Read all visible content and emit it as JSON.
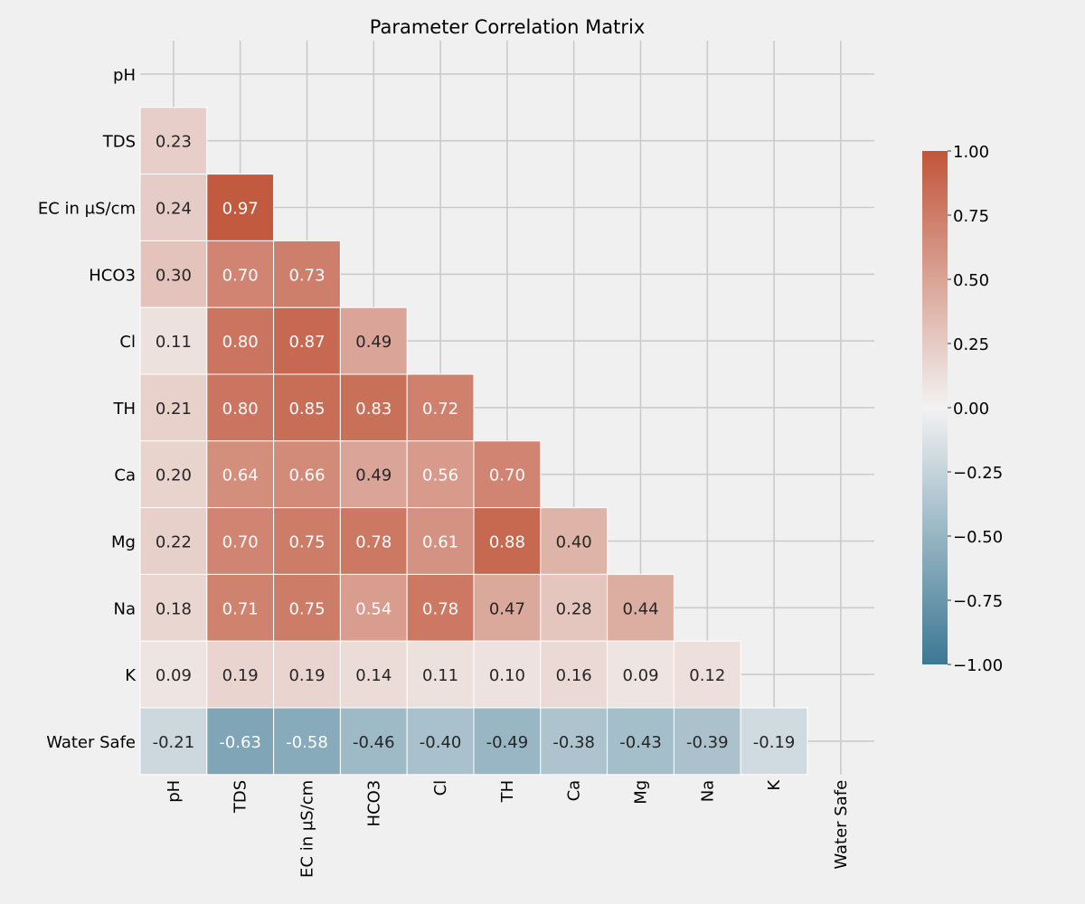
{
  "chart_data": {
    "type": "heatmap",
    "title": "Parameter Correlation Matrix",
    "xlabel": "",
    "ylabel": "",
    "labels": [
      "pH",
      "TDS",
      "EC in μS/cm",
      "HCO3",
      "Cl",
      "TH",
      "Ca",
      "Mg",
      "Na",
      "K",
      "Water Safe"
    ],
    "mask": "upper triangle incl. diagonal",
    "value_format": "2 decimals",
    "matrix": [
      [
        null,
        null,
        null,
        null,
        null,
        null,
        null,
        null,
        null,
        null,
        null
      ],
      [
        0.23,
        null,
        null,
        null,
        null,
        null,
        null,
        null,
        null,
        null,
        null
      ],
      [
        0.24,
        0.97,
        null,
        null,
        null,
        null,
        null,
        null,
        null,
        null,
        null
      ],
      [
        0.3,
        0.7,
        0.73,
        null,
        null,
        null,
        null,
        null,
        null,
        null,
        null
      ],
      [
        0.11,
        0.8,
        0.87,
        0.49,
        null,
        null,
        null,
        null,
        null,
        null,
        null
      ],
      [
        0.21,
        0.8,
        0.85,
        0.83,
        0.72,
        null,
        null,
        null,
        null,
        null,
        null
      ],
      [
        0.2,
        0.64,
        0.66,
        0.49,
        0.56,
        0.7,
        null,
        null,
        null,
        null,
        null
      ],
      [
        0.22,
        0.7,
        0.75,
        0.78,
        0.61,
        0.88,
        0.4,
        null,
        null,
        null,
        null
      ],
      [
        0.18,
        0.71,
        0.75,
        0.54,
        0.78,
        0.47,
        0.28,
        0.44,
        null,
        null,
        null
      ],
      [
        0.09,
        0.19,
        0.19,
        0.14,
        0.11,
        0.1,
        0.16,
        0.09,
        0.12,
        null,
        null
      ],
      [
        -0.21,
        -0.63,
        -0.58,
        -0.46,
        -0.4,
        -0.49,
        -0.38,
        -0.43,
        -0.39,
        -0.19,
        null
      ]
    ],
    "colorbar": {
      "range": [
        -1.0,
        1.0
      ],
      "ticks": [
        1.0,
        0.75,
        0.5,
        0.25,
        0.0,
        -0.25,
        -0.5,
        -0.75,
        -1.0
      ],
      "tick_labels": [
        "1.00",
        "0.75",
        "0.50",
        "0.25",
        "0.00",
        "−0.25",
        "−0.50",
        "−0.75",
        "−1.00"
      ],
      "cmap": "diverging blue-white-red",
      "color_low": "#3c7894",
      "color_mid": "#f2f2f2",
      "color_high": "#c1553a"
    },
    "grid": true
  },
  "colors": {
    "background": "#f0f0f0",
    "gridline": "#cbcbcb",
    "cell_border": "#ffffff",
    "text_dark": "#262626",
    "text_light": "#ffffff"
  }
}
